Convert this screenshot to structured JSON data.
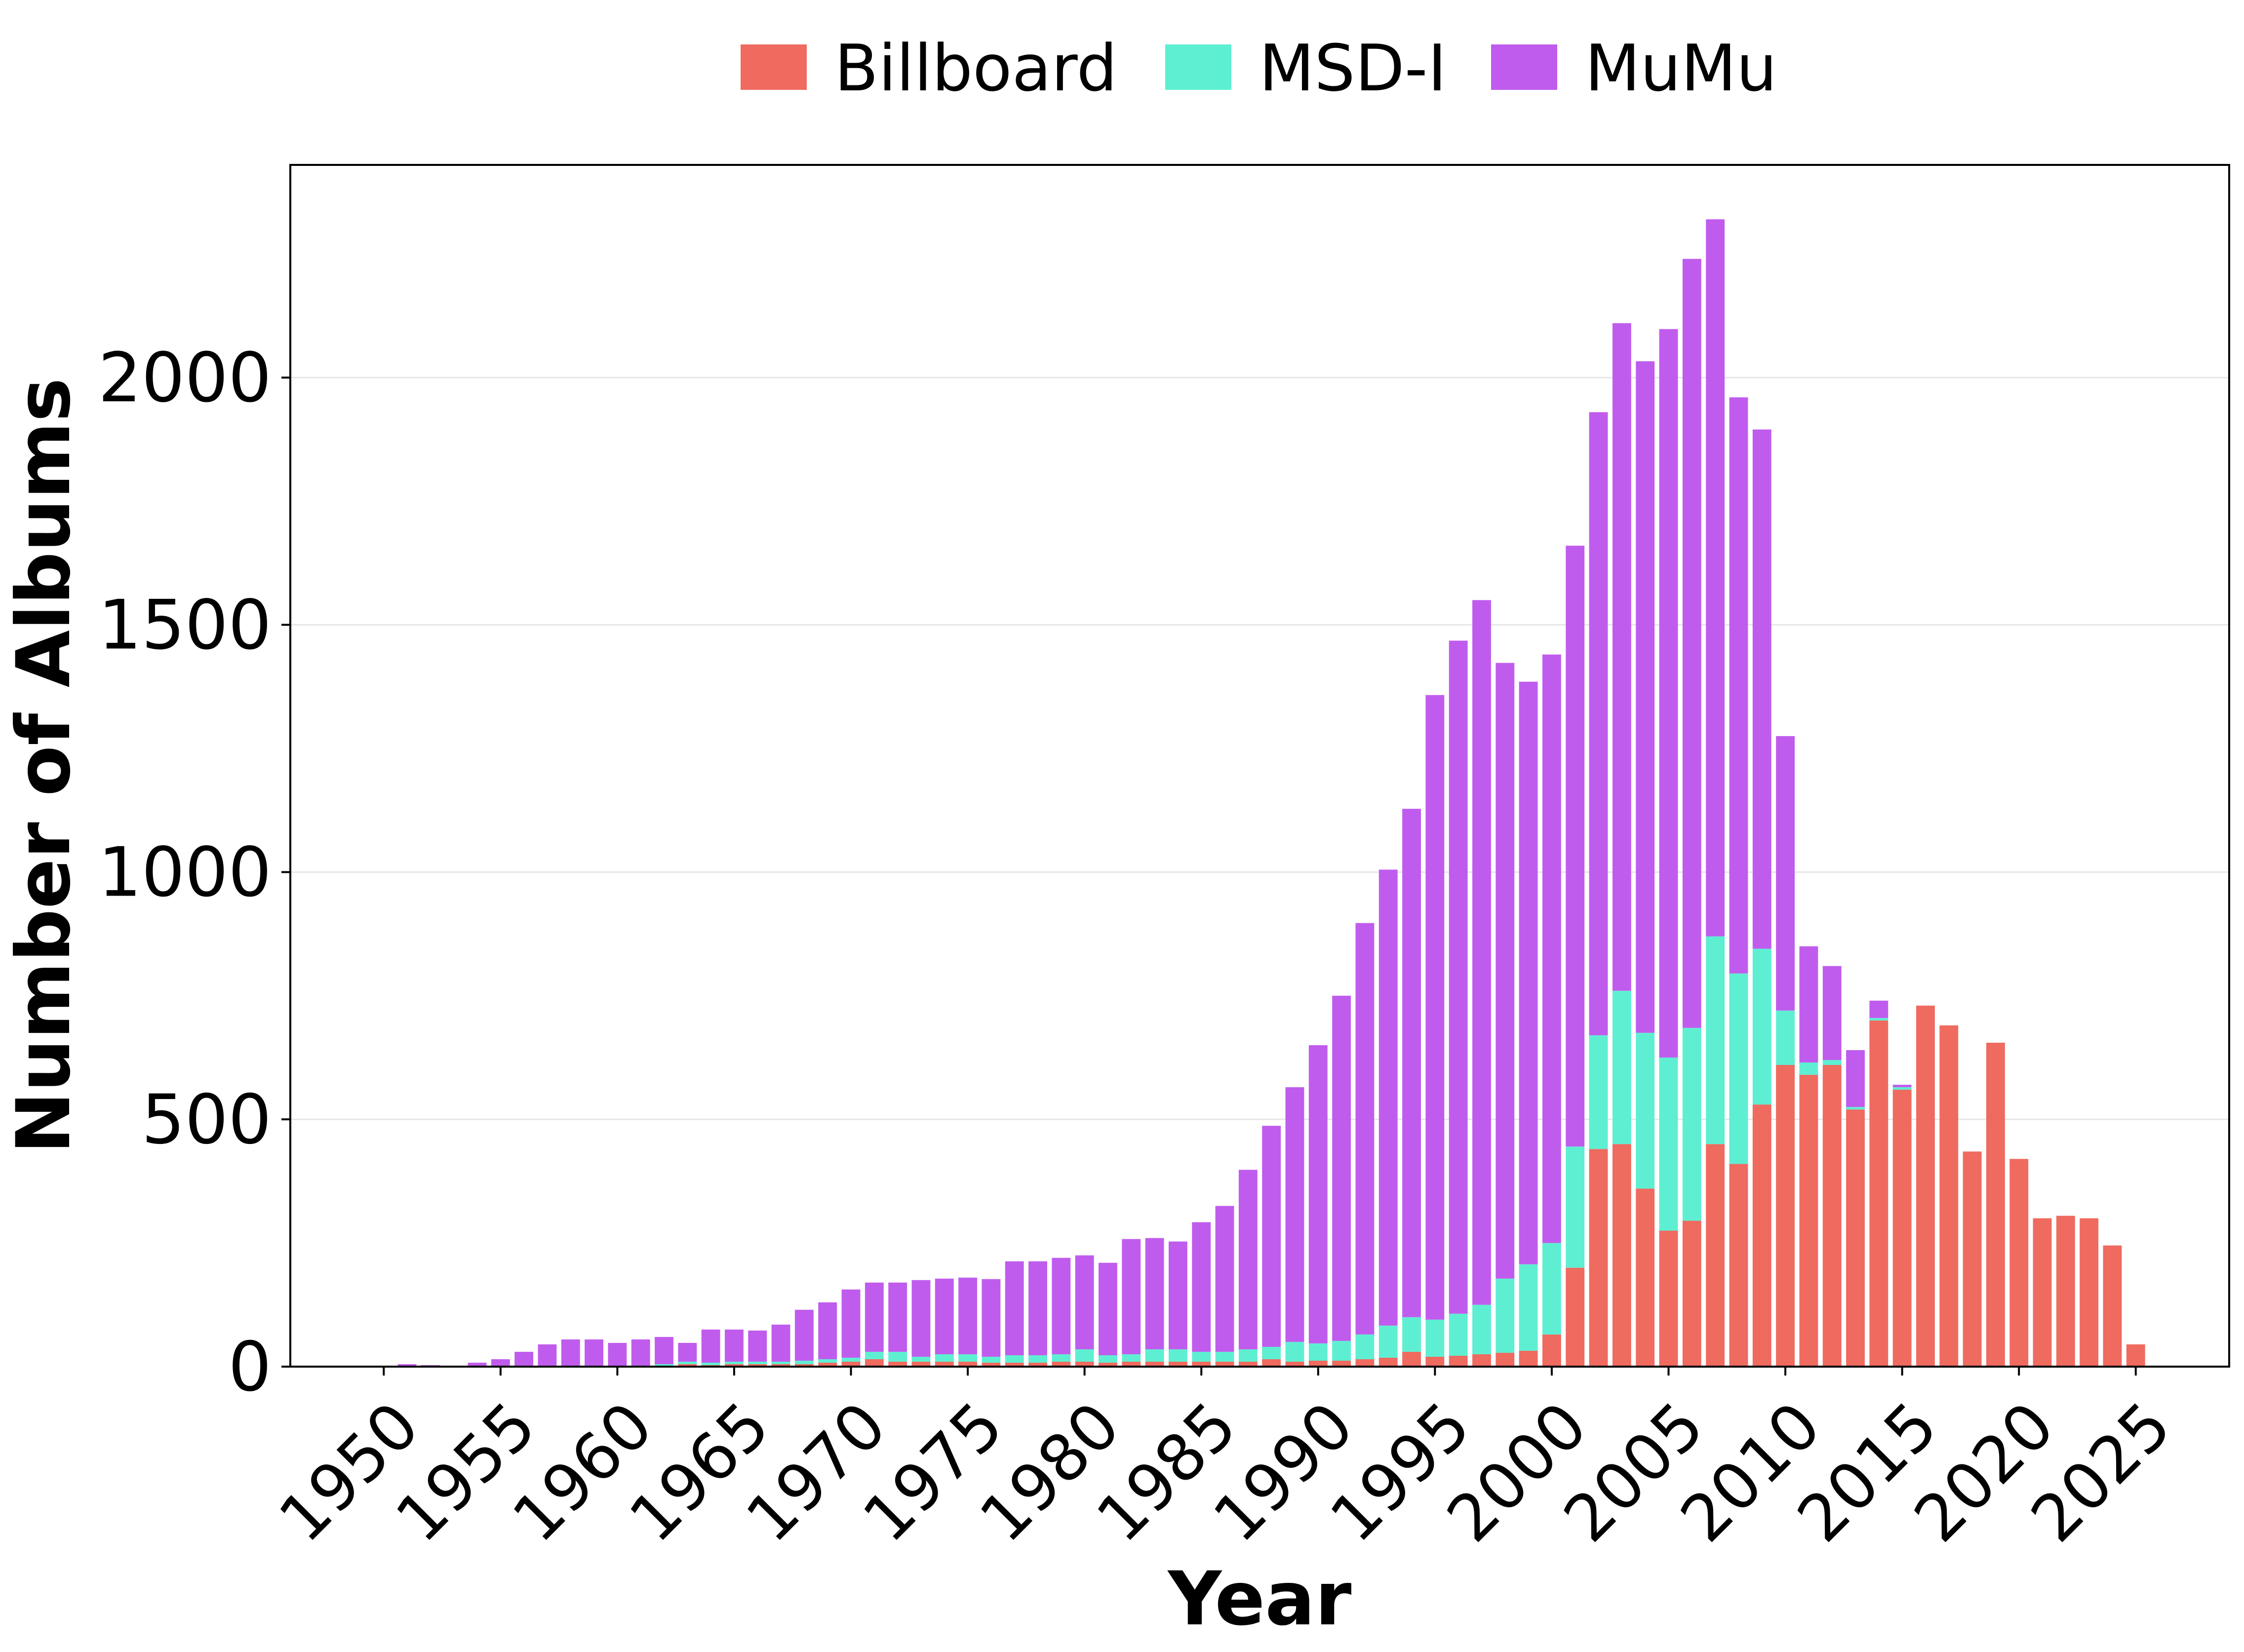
{
  "chart_data": {
    "type": "bar",
    "stacked": true,
    "title": "",
    "xlabel": "Year",
    "ylabel": "Number of Albums",
    "xlim": [
      1946,
      2029
    ],
    "ylim": [
      0,
      2430
    ],
    "x_ticks": [
      1950,
      1955,
      1960,
      1965,
      1970,
      1975,
      1980,
      1985,
      1990,
      1995,
      2000,
      2005,
      2010,
      2015,
      2020,
      2025
    ],
    "y_ticks": [
      0,
      500,
      1000,
      1500,
      2000
    ],
    "grid": "horizontal",
    "legend_position": "top-center",
    "x": [
      1951,
      1952,
      1953,
      1954,
      1955,
      1956,
      1957,
      1958,
      1959,
      1960,
      1961,
      1962,
      1963,
      1964,
      1965,
      1966,
      1967,
      1968,
      1969,
      1970,
      1971,
      1972,
      1973,
      1974,
      1975,
      1976,
      1977,
      1978,
      1979,
      1980,
      1981,
      1982,
      1983,
      1984,
      1985,
      1986,
      1987,
      1988,
      1989,
      1990,
      1991,
      1992,
      1993,
      1994,
      1995,
      1996,
      1997,
      1998,
      1999,
      2000,
      2001,
      2002,
      2003,
      2004,
      2005,
      2006,
      2007,
      2008,
      2009,
      2010,
      2011,
      2012,
      2013,
      2014,
      2015,
      2016,
      2017,
      2018,
      2019,
      2020,
      2021,
      2022,
      2023,
      2024,
      2025
    ],
    "series": [
      {
        "name": "Billboard",
        "color": "#ef6a5f",
        "values": [
          0,
          0,
          0,
          0,
          0,
          0,
          0,
          0,
          0,
          0,
          0,
          0,
          5,
          3,
          5,
          5,
          5,
          5,
          8,
          10,
          15,
          10,
          10,
          10,
          10,
          8,
          8,
          8,
          10,
          10,
          8,
          10,
          10,
          10,
          10,
          10,
          10,
          15,
          10,
          12,
          12,
          15,
          18,
          30,
          20,
          22,
          25,
          28,
          32,
          65,
          200,
          440,
          450,
          360,
          275,
          295,
          450,
          410,
          530,
          610,
          590,
          610,
          520,
          700,
          560,
          730,
          690,
          435,
          655,
          420,
          300,
          305,
          300,
          245,
          45
        ]
      },
      {
        "name": "MSD-I",
        "color": "#5eefd2",
        "values": [
          0,
          0,
          0,
          0,
          0,
          0,
          0,
          0,
          0,
          0,
          0,
          5,
          5,
          5,
          5,
          5,
          5,
          7,
          7,
          8,
          15,
          20,
          10,
          15,
          15,
          12,
          15,
          15,
          15,
          25,
          15,
          15,
          25,
          25,
          20,
          20,
          25,
          25,
          40,
          35,
          40,
          50,
          65,
          70,
          75,
          85,
          100,
          150,
          175,
          185,
          245,
          230,
          310,
          315,
          350,
          390,
          420,
          385,
          315,
          110,
          25,
          10,
          5,
          5,
          5,
          0,
          0,
          0,
          0,
          0,
          0,
          0,
          0,
          0,
          0
        ]
      },
      {
        "name": "MuMu",
        "color": "#c05ced",
        "values": [
          5,
          3,
          0,
          8,
          15,
          30,
          45,
          55,
          55,
          48,
          55,
          55,
          38,
          67,
          65,
          63,
          75,
          103,
          115,
          138,
          140,
          140,
          155,
          153,
          155,
          157,
          190,
          190,
          195,
          190,
          187,
          233,
          225,
          218,
          262,
          295,
          363,
          447,
          515,
          603,
          698,
          832,
          922,
          1028,
          1263,
          1361,
          1425,
          1245,
          1178,
          1190,
          1215,
          1260,
          1350,
          1358,
          1473,
          1555,
          1450,
          1165,
          1050,
          555,
          235,
          190,
          115,
          35,
          5,
          0,
          0,
          0,
          0,
          0,
          0,
          0,
          0,
          0,
          0
        ]
      }
    ]
  }
}
